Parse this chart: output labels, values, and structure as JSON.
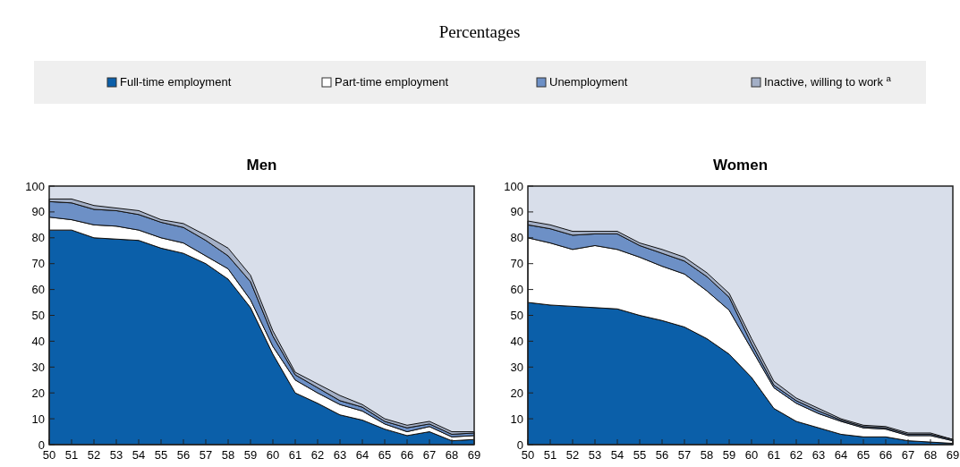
{
  "chart_data": [
    {
      "type": "area",
      "subtitle": "Percentages",
      "title": "Men",
      "stacked": true,
      "legend": "top",
      "categories": [
        "50",
        "51",
        "52",
        "53",
        "54",
        "55",
        "56",
        "57",
        "58",
        "59",
        "60",
        "61",
        "62",
        "63",
        "64",
        "65",
        "66",
        "67",
        "68",
        "69"
      ],
      "ylim": [
        0,
        100
      ],
      "yticks": [
        0,
        10,
        20,
        30,
        40,
        50,
        60,
        70,
        80,
        90,
        100
      ],
      "series": [
        {
          "name": "Full-time employment",
          "color": "#0b5fa9",
          "values": [
            83,
            83,
            80,
            79.5,
            79,
            76,
            74,
            70,
            64,
            53,
            35,
            20,
            16,
            11.5,
            9.5,
            6,
            3.5,
            5,
            1.5,
            2
          ]
        },
        {
          "name": "Part-time employment",
          "color": "#ffffff",
          "values": [
            5,
            4,
            5,
            5,
            4,
            4,
            4,
            3,
            4,
            3,
            3,
            5,
            4,
            4,
            3.5,
            2,
            1.5,
            2,
            1.5,
            1.5
          ]
        },
        {
          "name": "Unemployment",
          "color": "#6d90c6",
          "values": [
            6,
            6.5,
            6,
            6,
            6,
            6,
            6,
            6,
            5,
            7,
            4,
            2,
            2,
            1.5,
            1.5,
            1,
            1.5,
            1,
            1,
            1
          ]
        },
        {
          "name": "Inactive, willing to work $^{a}$",
          "color": "#a3afc6",
          "values": [
            1,
            1.5,
            1.5,
            1,
            1.5,
            1,
            1.5,
            2,
            3,
            2.5,
            2,
            1,
            1.5,
            2,
            1,
            1,
            1,
            1,
            1,
            0.5
          ]
        }
      ]
    },
    {
      "type": "area",
      "title": "Women",
      "stacked": true,
      "categories": [
        "50",
        "51",
        "52",
        "53",
        "54",
        "55",
        "56",
        "57",
        "58",
        "59",
        "60",
        "61",
        "62",
        "63",
        "64",
        "65",
        "66",
        "67",
        "68",
        "69"
      ],
      "ylim": [
        0,
        100
      ],
      "yticks": [
        0,
        10,
        20,
        30,
        40,
        50,
        60,
        70,
        80,
        90,
        100
      ],
      "series": [
        {
          "color": "#0b5fa9",
          "values": [
            55,
            54,
            53.5,
            53,
            52.5,
            50,
            48,
            45.5,
            41,
            35,
            26,
            14,
            9,
            6.5,
            4,
            3,
            3,
            1.5,
            1,
            0.5
          ]
        },
        {
          "color": "#ffffff",
          "values": [
            25,
            24,
            22,
            24,
            23,
            22.5,
            21,
            20.5,
            18.5,
            17,
            11,
            8,
            7,
            5.5,
            5,
            3.5,
            3,
            2,
            2.5,
            1
          ]
        },
        {
          "color": "#6d90c6",
          "values": [
            5,
            5.5,
            5.5,
            4.5,
            6,
            4.5,
            5,
            5,
            5.5,
            5,
            2,
            1,
            1,
            1,
            0.5,
            0.5,
            0.5,
            0.5,
            0.5,
            0.5
          ]
        },
        {
          "color": "#a3afc6",
          "values": [
            1.5,
            1.5,
            1.5,
            1,
            1,
            1,
            1.5,
            1.5,
            1.5,
            1.5,
            2,
            1.5,
            1,
            1,
            0.5,
            0.5,
            0.5,
            0.5,
            0.5,
            0
          ]
        }
      ]
    }
  ]
}
